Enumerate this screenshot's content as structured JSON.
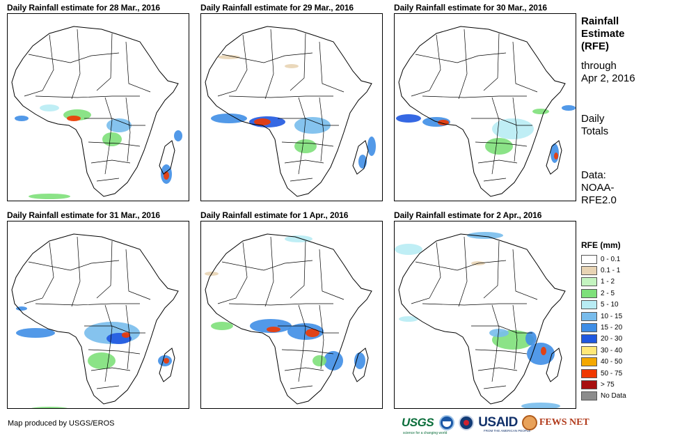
{
  "panels": [
    {
      "title": "Daily Rainfall estimate for 28 Mar., 2016"
    },
    {
      "title": "Daily Rainfall estimate for 29 Mar., 2016"
    },
    {
      "title": "Daily Rainfall estimate for 30 Mar., 2016"
    },
    {
      "title": "Daily Rainfall estimate for 31 Mar., 2016"
    },
    {
      "title": "Daily Rainfall estimate for 1 Apr., 2016"
    },
    {
      "title": "Daily Rainfall estimate for 2 Apr., 2016"
    }
  ],
  "side": {
    "heading": [
      "Rainfall",
      "Estimate",
      "(RFE)"
    ],
    "through": [
      "through",
      "Apr 2, 2016"
    ],
    "totals": [
      "Daily",
      "Totals"
    ],
    "data": [
      "Data:",
      "NOAA-",
      "RFE2.0"
    ]
  },
  "legend": {
    "title": "RFE (mm)",
    "items": [
      {
        "label": "0 - 0.1",
        "color": "#ffffff"
      },
      {
        "label": "0.1 - 1",
        "color": "#e8d4b4"
      },
      {
        "label": "1 - 2",
        "color": "#c4f4c0"
      },
      {
        "label": "2 - 5",
        "color": "#7ee07a"
      },
      {
        "label": "5 - 10",
        "color": "#b8ecf4"
      },
      {
        "label": "10 - 15",
        "color": "#78bcec"
      },
      {
        "label": "15 - 20",
        "color": "#3f8ee6"
      },
      {
        "label": "20 - 30",
        "color": "#1f58e0"
      },
      {
        "label": "30 - 40",
        "color": "#ffe878"
      },
      {
        "label": "40 - 50",
        "color": "#f4a800"
      },
      {
        "label": "50 - 75",
        "color": "#f03800"
      },
      {
        "label": "> 75",
        "color": "#a81010"
      },
      {
        "label": "No Data",
        "color": "#8c8c8c"
      }
    ]
  },
  "credit": "Map produced by USGS/EROS",
  "logos": {
    "usgs": "USGS",
    "usgs_tagline": "science for a changing world",
    "usaid": "USAID",
    "usaid_tagline": "FROM THE AMERICAN PEOPLE",
    "fews": "FEWS NET"
  }
}
